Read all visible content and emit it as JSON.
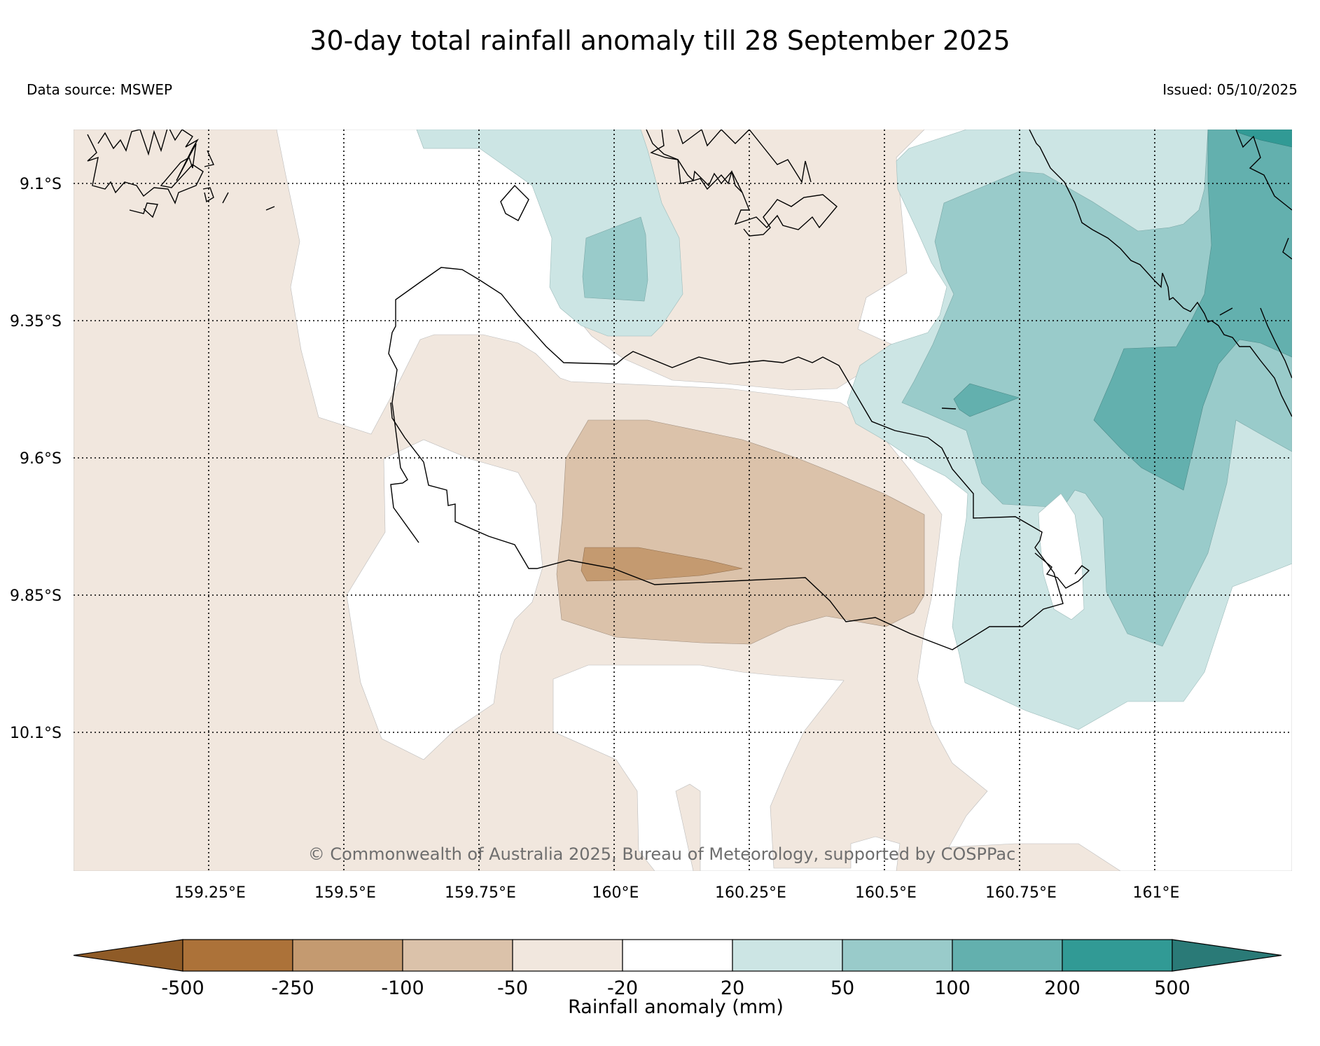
{
  "title": "30-day total rainfall anomaly till 28 September 2025",
  "data_source": "Data source: MSWEP",
  "issued": "Issued: 05/10/2025",
  "copyright": "© Commonwealth of Australia 2025, Bureau of Meteorology, supported by COSPPac",
  "map": {
    "lat_labels": [
      "9.1°S",
      "9.35°S",
      "9.6°S",
      "9.85°S",
      "10.1°S"
    ],
    "lon_labels": [
      "159.25°E",
      "159.5°E",
      "159.75°E",
      "160°E",
      "160.25°E",
      "160.5°E",
      "160.75°E",
      "161°E"
    ]
  },
  "colorbar": {
    "title": "Rainfall anomaly (mm)",
    "levels": [
      "-500",
      "-250",
      "-100",
      "-50",
      "-20",
      "20",
      "50",
      "100",
      "200",
      "500"
    ],
    "colors": [
      "#ac7239",
      "#c49a70",
      "#dbc2aa",
      "#f1e7de",
      "#ffffff",
      "#cce5e4",
      "#99cbca",
      "#63b0ae",
      "#319a95"
    ],
    "under_color": "#8f5b27",
    "over_color": "#2a7a77"
  }
}
